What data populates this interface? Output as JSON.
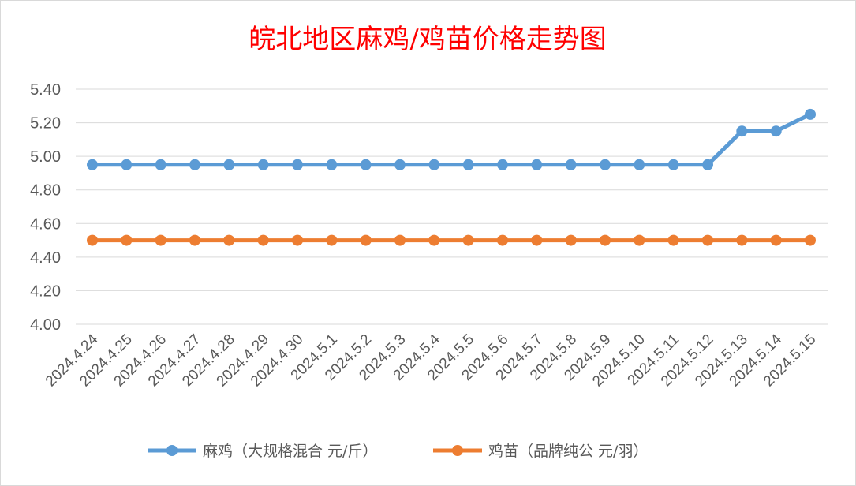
{
  "chart_data": {
    "type": "line",
    "title": "皖北地区麻鸡/鸡苗价格走势图",
    "xlabel": "",
    "ylabel": "",
    "ylim": [
      4.0,
      5.4
    ],
    "y_ticks": [
      "4.00",
      "4.20",
      "4.40",
      "4.60",
      "4.80",
      "5.00",
      "5.20",
      "5.40"
    ],
    "grid": true,
    "legend_position": "bottom",
    "categories": [
      "2024.4.24",
      "2024.4.25",
      "2024.4.26",
      "2024.4.27",
      "2024.4.28",
      "2024.4.29",
      "2024.4.30",
      "2024.5.1",
      "2024.5.2",
      "2024.5.3",
      "2024.5.4",
      "2024.5.5",
      "2024.5.6",
      "2024.5.7",
      "2024.5.8",
      "2024.5.9",
      "2024.5.10",
      "2024.5.11",
      "2024.5.12",
      "2024.5.13",
      "2024.5.14",
      "2024.5.15"
    ],
    "series": [
      {
        "name": "麻鸡（大规格混合 元/斤）",
        "color": "#5b9bd5",
        "values": [
          4.95,
          4.95,
          4.95,
          4.95,
          4.95,
          4.95,
          4.95,
          4.95,
          4.95,
          4.95,
          4.95,
          4.95,
          4.95,
          4.95,
          4.95,
          4.95,
          4.95,
          4.95,
          4.95,
          5.15,
          5.15,
          5.25
        ]
      },
      {
        "name": "鸡苗（品牌纯公 元/羽）",
        "color": "#ed7d31",
        "values": [
          4.5,
          4.5,
          4.5,
          4.5,
          4.5,
          4.5,
          4.5,
          4.5,
          4.5,
          4.5,
          4.5,
          4.5,
          4.5,
          4.5,
          4.5,
          4.5,
          4.5,
          4.5,
          4.5,
          4.5,
          4.5,
          4.5
        ]
      }
    ]
  }
}
